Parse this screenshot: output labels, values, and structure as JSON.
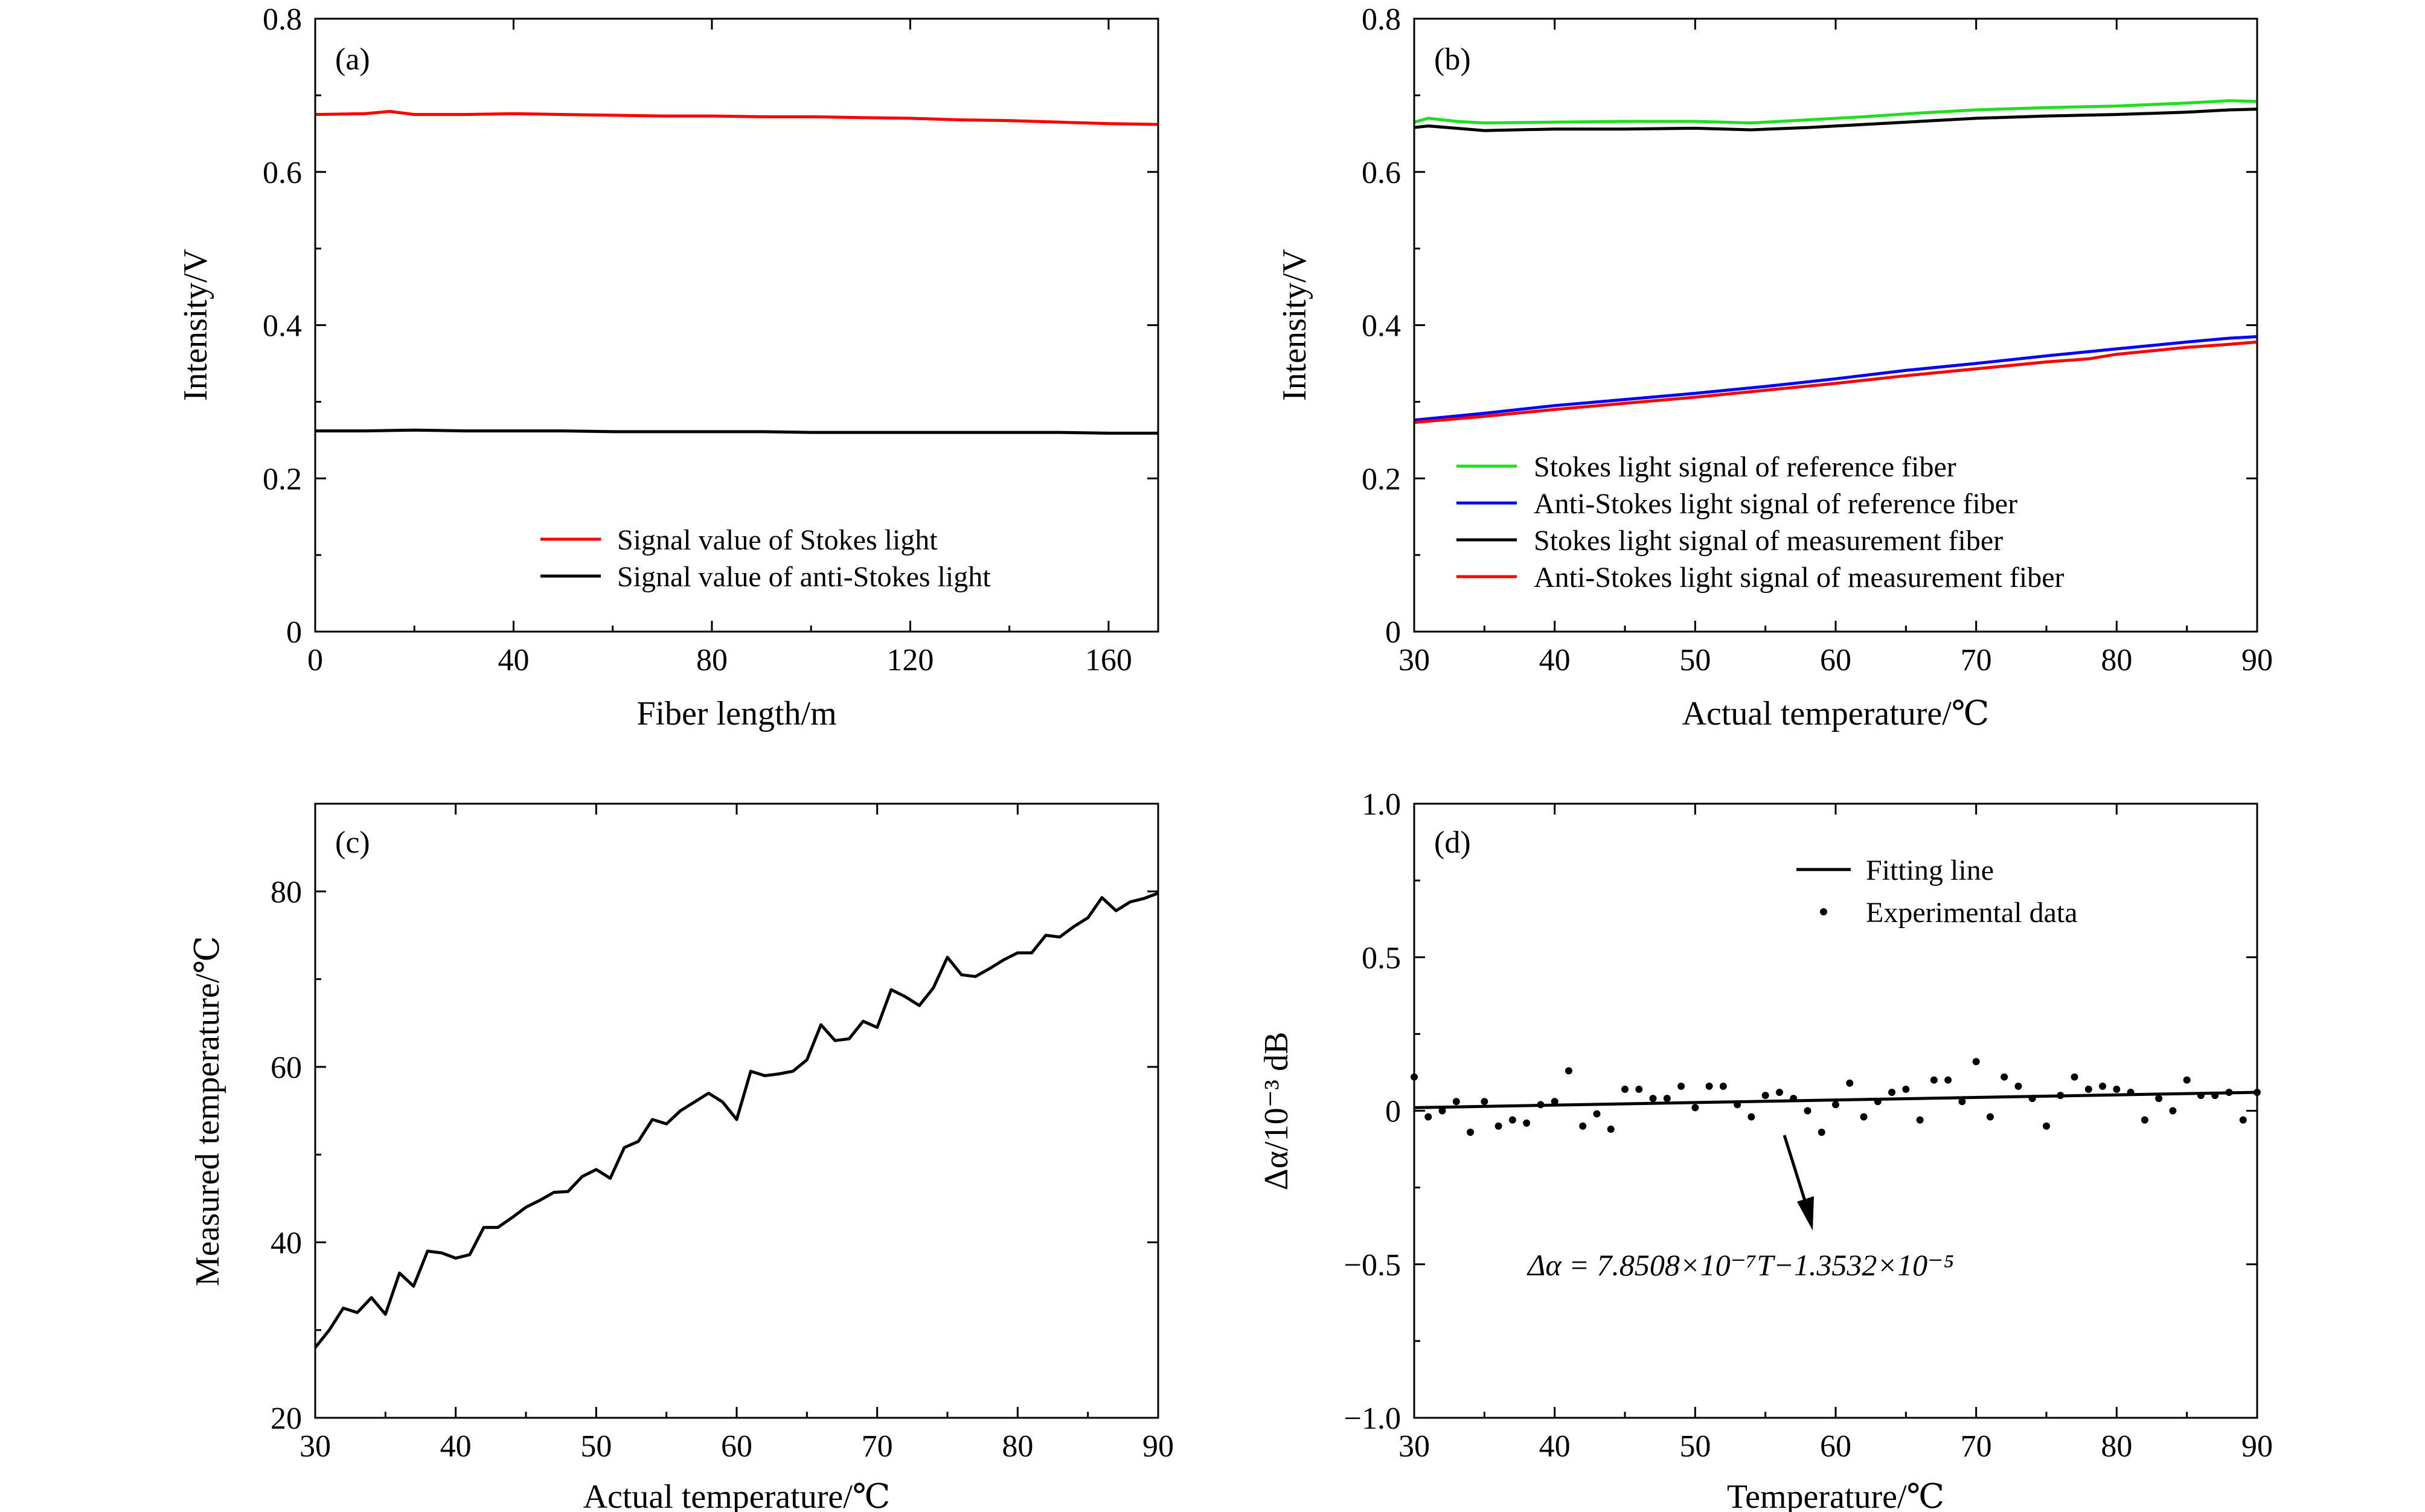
{
  "figure": {
    "panels": [
      "a",
      "b",
      "c",
      "d"
    ]
  },
  "chart_data": [
    {
      "id": "a",
      "type": "line",
      "tag": "(a)",
      "xlabel": "Fiber length/m",
      "ylabel": "Intensity/V",
      "xlim": [
        0,
        170
      ],
      "ylim": [
        0,
        0.8
      ],
      "xticks": [
        0,
        40,
        80,
        120,
        160
      ],
      "xtick_labels": [
        "0",
        "40",
        "80",
        "120",
        "160"
      ],
      "yticks": [
        0,
        0.2,
        0.4,
        0.6,
        0.8
      ],
      "ytick_labels": [
        "0",
        "0.2",
        "0.4",
        "0.6",
        "0.8"
      ],
      "legend_position": "bottom-right",
      "series": [
        {
          "name": "Signal value of Stokes light",
          "color": "#ff0000",
          "x": [
            0,
            10,
            15,
            20,
            30,
            40,
            50,
            60,
            70,
            80,
            90,
            100,
            110,
            120,
            130,
            140,
            150,
            160,
            170
          ],
          "y": [
            0.675,
            0.676,
            0.679,
            0.675,
            0.675,
            0.676,
            0.675,
            0.674,
            0.673,
            0.673,
            0.672,
            0.672,
            0.671,
            0.67,
            0.668,
            0.667,
            0.665,
            0.663,
            0.662
          ]
        },
        {
          "name": "Signal value of anti-Stokes light",
          "color": "#000000",
          "x": [
            0,
            10,
            20,
            30,
            40,
            50,
            60,
            70,
            80,
            90,
            100,
            110,
            120,
            130,
            140,
            150,
            160,
            170
          ],
          "y": [
            0.262,
            0.262,
            0.263,
            0.262,
            0.262,
            0.262,
            0.261,
            0.261,
            0.261,
            0.261,
            0.26,
            0.26,
            0.26,
            0.26,
            0.26,
            0.26,
            0.259,
            0.259
          ]
        }
      ]
    },
    {
      "id": "b",
      "type": "line",
      "tag": "(b)",
      "xlabel": "Actual temperature/℃",
      "ylabel": "Intensity/V",
      "xlim": [
        30,
        90
      ],
      "ylim": [
        0,
        0.8
      ],
      "xticks": [
        30,
        40,
        50,
        60,
        70,
        80,
        90
      ],
      "xtick_labels": [
        "30",
        "40",
        "50",
        "60",
        "70",
        "80",
        "90"
      ],
      "yticks": [
        0,
        0.2,
        0.4,
        0.6,
        0.8
      ],
      "ytick_labels": [
        "0",
        "0.2",
        "0.4",
        "0.6",
        "0.8"
      ],
      "legend_position": "lower-middle",
      "series": [
        {
          "name": "Stokes light signal of reference fiber",
          "color": "#22dd22",
          "x": [
            30,
            31,
            33,
            35,
            40,
            45,
            50,
            54,
            58,
            62,
            66,
            70,
            75,
            80,
            85,
            88,
            90
          ],
          "y": [
            0.665,
            0.67,
            0.666,
            0.664,
            0.665,
            0.666,
            0.666,
            0.664,
            0.668,
            0.672,
            0.677,
            0.681,
            0.684,
            0.686,
            0.69,
            0.693,
            0.692
          ]
        },
        {
          "name": "Anti-Stokes light signal of reference fiber",
          "color": "#0000ff",
          "x": [
            30,
            35,
            40,
            45,
            50,
            55,
            60,
            65,
            70,
            75,
            80,
            85,
            88,
            90
          ],
          "y": [
            0.276,
            0.285,
            0.295,
            0.303,
            0.311,
            0.32,
            0.33,
            0.341,
            0.35,
            0.36,
            0.369,
            0.378,
            0.383,
            0.385
          ]
        },
        {
          "name": "Stokes light signal of measurement fiber",
          "color": "#000000",
          "x": [
            30,
            31,
            33,
            35,
            40,
            45,
            50,
            54,
            58,
            62,
            66,
            70,
            75,
            80,
            85,
            88,
            90
          ],
          "y": [
            0.658,
            0.66,
            0.657,
            0.654,
            0.656,
            0.656,
            0.657,
            0.655,
            0.658,
            0.662,
            0.666,
            0.67,
            0.673,
            0.675,
            0.678,
            0.681,
            0.682
          ]
        },
        {
          "name": "Anti-Stokes light signal of measurement fiber",
          "color": "#ff0000",
          "x": [
            30,
            35,
            40,
            45,
            50,
            55,
            60,
            65,
            70,
            75,
            78,
            80,
            85,
            88,
            90
          ],
          "y": [
            0.273,
            0.281,
            0.29,
            0.298,
            0.306,
            0.315,
            0.324,
            0.334,
            0.343,
            0.352,
            0.356,
            0.362,
            0.371,
            0.375,
            0.378
          ]
        }
      ]
    },
    {
      "id": "c",
      "type": "line",
      "tag": "(c)",
      "xlabel": "Actual temperature/℃",
      "ylabel": "Measured temperature/℃",
      "xlim": [
        30,
        90
      ],
      "ylim": [
        20,
        90
      ],
      "xticks": [
        30,
        40,
        50,
        60,
        70,
        80,
        90
      ],
      "xtick_labels": [
        "30",
        "40",
        "50",
        "60",
        "70",
        "80",
        "90"
      ],
      "yticks": [
        20,
        40,
        60,
        80
      ],
      "ytick_labels": [
        "20",
        "40",
        "60",
        "80"
      ],
      "series": [
        {
          "name": "Measured temperature",
          "color": "#000000",
          "x": [
            30,
            31,
            32,
            33,
            34,
            35,
            36,
            37,
            38,
            39,
            40,
            41,
            42,
            43,
            44,
            45,
            46,
            47,
            48,
            49,
            50,
            51,
            52,
            53,
            54,
            55,
            56,
            57,
            58,
            59,
            60,
            61,
            62,
            63,
            64,
            65,
            66,
            67,
            68,
            69,
            70,
            71,
            72,
            73,
            74,
            75,
            76,
            77,
            78,
            79,
            80,
            81,
            82,
            83,
            84,
            85,
            86,
            87,
            88,
            89,
            90
          ],
          "y": [
            28.0,
            30.0,
            32.5,
            32.0,
            33.7,
            31.8,
            36.5,
            35.0,
            39.0,
            38.8,
            38.2,
            38.6,
            41.7,
            41.7,
            42.8,
            44.0,
            44.8,
            45.7,
            45.8,
            47.5,
            48.3,
            47.3,
            50.8,
            51.5,
            54.0,
            53.5,
            55.0,
            56.0,
            57.0,
            56.0,
            54.0,
            59.5,
            59.0,
            59.2,
            59.5,
            60.8,
            64.8,
            63.0,
            63.2,
            65.2,
            64.5,
            68.8,
            68.0,
            67.0,
            69.0,
            72.5,
            70.5,
            70.3,
            71.2,
            72.2,
            73.0,
            73.0,
            75.0,
            74.8,
            76.0,
            77.0,
            79.3,
            77.8,
            78.8,
            79.2,
            79.8
          ]
        }
      ]
    },
    {
      "id": "d",
      "type": "scatter",
      "tag": "(d)",
      "xlabel": "Temperature/℃",
      "ylabel": "Δα/10⁻³ dB",
      "xlim": [
        30,
        90
      ],
      "ylim": [
        -1.0,
        1.0
      ],
      "xticks": [
        30,
        40,
        50,
        60,
        70,
        80,
        90
      ],
      "xtick_labels": [
        "30",
        "40",
        "50",
        "60",
        "70",
        "80",
        "90"
      ],
      "yticks": [
        -1.0,
        -0.5,
        0,
        0.5,
        1.0
      ],
      "ytick_labels": [
        "−1.0",
        "−0.5",
        "0",
        "0.5",
        "1.0"
      ],
      "legend_position": "top-right",
      "annotation": "Δα = 7.8508×10⁻⁷T−1.3532×10⁻⁵",
      "fit": {
        "name": "Fitting line",
        "color": "#000000",
        "x": [
          30,
          90
        ],
        "y": [
          0.01,
          0.06
        ]
      },
      "series": [
        {
          "name": "Experimental data",
          "color": "#000000",
          "x": [
            30,
            31,
            32,
            33,
            34,
            35,
            36,
            37,
            38,
            39,
            40,
            41,
            42,
            43,
            44,
            45,
            46,
            47,
            48,
            49,
            50,
            51,
            52,
            53,
            54,
            55,
            56,
            57,
            58,
            59,
            60,
            61,
            62,
            63,
            64,
            65,
            66,
            67,
            68,
            69,
            70,
            71,
            72,
            73,
            74,
            75,
            76,
            77,
            78,
            79,
            80,
            81,
            82,
            83,
            84,
            85,
            86,
            87,
            88,
            89,
            90
          ],
          "y": [
            0.11,
            -0.02,
            0.0,
            0.03,
            -0.07,
            0.03,
            -0.05,
            -0.03,
            -0.04,
            0.02,
            0.03,
            0.13,
            -0.05,
            -0.01,
            -0.06,
            0.07,
            0.07,
            0.04,
            0.04,
            0.08,
            0.01,
            0.08,
            0.08,
            0.02,
            -0.02,
            0.05,
            0.06,
            0.04,
            0.0,
            -0.07,
            0.02,
            0.09,
            -0.02,
            0.03,
            0.06,
            0.07,
            -0.03,
            0.1,
            0.1,
            0.03,
            0.16,
            -0.02,
            0.11,
            0.08,
            0.04,
            -0.05,
            0.05,
            0.11,
            0.07,
            0.08,
            0.07,
            0.06,
            -0.03,
            0.04,
            0.0,
            0.1,
            0.05,
            0.05,
            0.06,
            -0.03,
            0.06
          ]
        }
      ]
    }
  ]
}
